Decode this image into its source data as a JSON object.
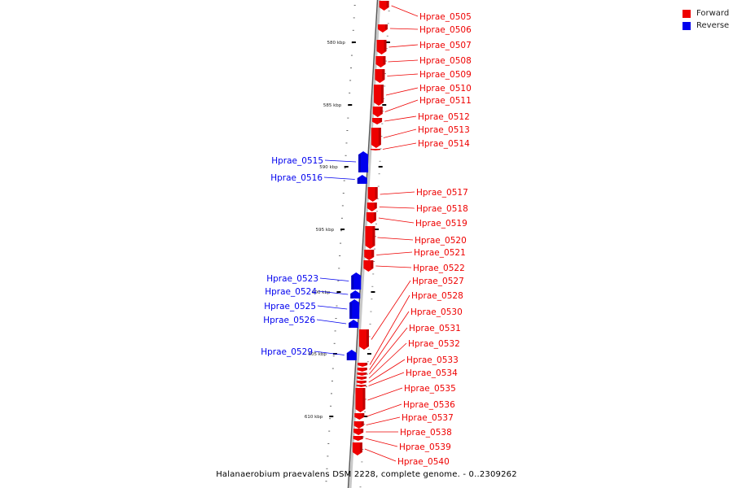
{
  "caption": "Halanaerobium praevalens DSM 2228, complete genome. - 0..2309262",
  "legend": [
    {
      "label": "Forward",
      "color": "#ee0000"
    },
    {
      "label": "Reverse",
      "color": "#0000ee"
    }
  ],
  "colors": {
    "forward": "#ee0000",
    "reverse": "#0000ee",
    "backbone": "#9a9a9a"
  },
  "ruler_labels": [
    "580 kbp",
    "585 kbp",
    "590 kbp",
    "595 kbp",
    "600 kbp",
    "605 kbp",
    "610 kbp"
  ],
  "genes": [
    {
      "name": "Hprae_0505",
      "strand": "forward"
    },
    {
      "name": "Hprae_0506",
      "strand": "forward"
    },
    {
      "name": "Hprae_0507",
      "strand": "forward"
    },
    {
      "name": "Hprae_0508",
      "strand": "forward"
    },
    {
      "name": "Hprae_0509",
      "strand": "forward"
    },
    {
      "name": "Hprae_0510",
      "strand": "forward"
    },
    {
      "name": "Hprae_0511",
      "strand": "forward"
    },
    {
      "name": "Hprae_0512",
      "strand": "forward"
    },
    {
      "name": "Hprae_0513",
      "strand": "forward"
    },
    {
      "name": "Hprae_0514",
      "strand": "forward"
    },
    {
      "name": "Hprae_0515",
      "strand": "reverse"
    },
    {
      "name": "Hprae_0516",
      "strand": "reverse"
    },
    {
      "name": "Hprae_0517",
      "strand": "forward"
    },
    {
      "name": "Hprae_0518",
      "strand": "forward"
    },
    {
      "name": "Hprae_0519",
      "strand": "forward"
    },
    {
      "name": "Hprae_0520",
      "strand": "forward"
    },
    {
      "name": "Hprae_0521",
      "strand": "forward"
    },
    {
      "name": "Hprae_0522",
      "strand": "forward"
    },
    {
      "name": "Hprae_0523",
      "strand": "reverse"
    },
    {
      "name": "Hprae_0524",
      "strand": "reverse"
    },
    {
      "name": "Hprae_0525",
      "strand": "reverse"
    },
    {
      "name": "Hprae_0526",
      "strand": "reverse"
    },
    {
      "name": "Hprae_0527",
      "strand": "forward"
    },
    {
      "name": "Hprae_0528",
      "strand": "forward"
    },
    {
      "name": "Hprae_0529",
      "strand": "reverse"
    },
    {
      "name": "Hprae_0530",
      "strand": "forward"
    },
    {
      "name": "Hprae_0531",
      "strand": "forward"
    },
    {
      "name": "Hprae_0532",
      "strand": "forward"
    },
    {
      "name": "Hprae_0533",
      "strand": "forward"
    },
    {
      "name": "Hprae_0534",
      "strand": "forward"
    },
    {
      "name": "Hprae_0535",
      "strand": "forward"
    },
    {
      "name": "Hprae_0536",
      "strand": "forward"
    },
    {
      "name": "Hprae_0537",
      "strand": "forward"
    },
    {
      "name": "Hprae_0538",
      "strand": "forward"
    },
    {
      "name": "Hprae_0539",
      "strand": "forward"
    },
    {
      "name": "Hprae_0540",
      "strand": "forward"
    }
  ]
}
